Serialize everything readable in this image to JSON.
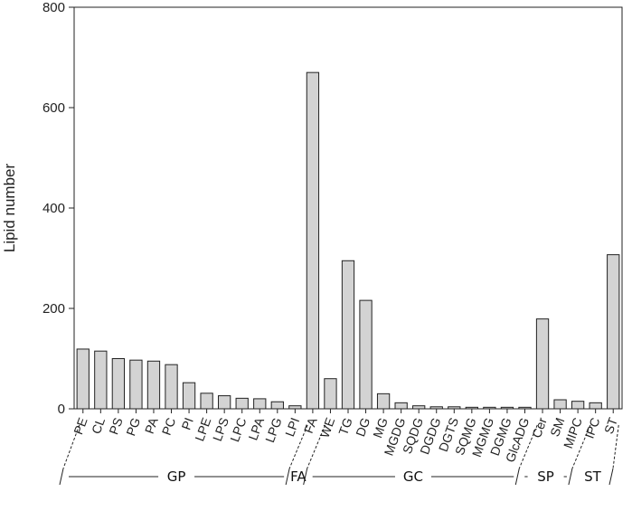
{
  "chart_data": {
    "type": "bar",
    "ylabel": "Lipid number",
    "ylim": [
      0,
      800
    ],
    "yticks": [
      0,
      200,
      400,
      600,
      800
    ],
    "grid": false,
    "categories": [
      "PE",
      "CL",
      "PS",
      "PG",
      "PA",
      "PC",
      "PI",
      "LPE",
      "LPS",
      "LPC",
      "LPA",
      "LPG",
      "LPI",
      "FA",
      "WE",
      "TG",
      "DG",
      "MG",
      "MGDG",
      "SQDG",
      "DGDG",
      "DGTS",
      "SQMG",
      "MGMG",
      "DGMG",
      "GlcADG",
      "Cer",
      "SM",
      "MIPC",
      "IPC",
      "ST"
    ],
    "values": [
      119,
      115,
      100,
      97,
      95,
      88,
      52,
      31,
      26,
      21,
      20,
      14,
      6,
      670,
      60,
      295,
      216,
      30,
      12,
      6,
      4,
      4,
      3,
      3,
      3,
      3,
      179,
      18,
      15,
      12,
      307
    ],
    "groups": [
      {
        "label": "GP",
        "start": 0,
        "end": 12
      },
      {
        "label": "FA",
        "start": 13,
        "end": 13
      },
      {
        "label": "GC",
        "start": 14,
        "end": 25
      },
      {
        "label": "SP",
        "start": 26,
        "end": 28
      },
      {
        "label": "ST",
        "start": 29,
        "end": 30
      }
    ]
  }
}
